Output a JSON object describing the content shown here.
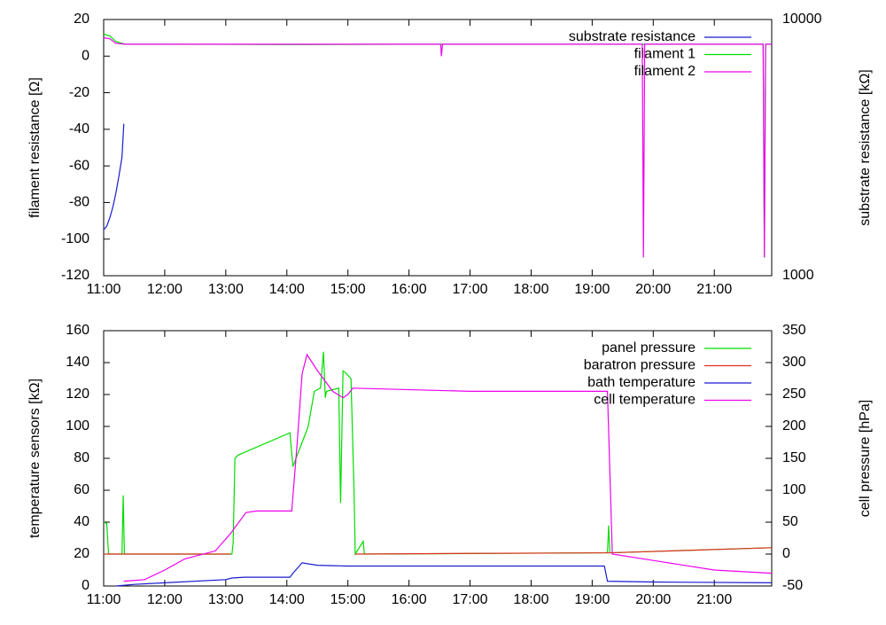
{
  "chart_data": [
    {
      "type": "line",
      "ylabel": "filament resistance [Ω]",
      "y2label": "substrate resistance [kΩ]",
      "xlim": [
        11,
        21.94
      ],
      "xticks": [
        {
          "value": 11,
          "label": "11:00"
        },
        {
          "value": 12,
          "label": "12:00"
        },
        {
          "value": 13,
          "label": "13:00"
        },
        {
          "value": 14,
          "label": "14:00"
        },
        {
          "value": 15,
          "label": "15:00"
        },
        {
          "value": 16,
          "label": "16:00"
        },
        {
          "value": 17,
          "label": "17:00"
        },
        {
          "value": 18,
          "label": "18:00"
        },
        {
          "value": 19,
          "label": "19:00"
        },
        {
          "value": 20,
          "label": "20:00"
        },
        {
          "value": 21,
          "label": "21:00"
        }
      ],
      "ylim": [
        -120,
        20
      ],
      "yticks": [
        -120,
        -100,
        -80,
        -60,
        -40,
        -20,
        0,
        20
      ],
      "y2lim": [
        1000,
        10000
      ],
      "y2ticks": [
        1000,
        10000
      ],
      "y2log": true,
      "grid": false,
      "legend": "top-right",
      "series": [
        {
          "name": "substrate resistance",
          "color": "#1a1ad0",
          "axis": "y2",
          "x": [
            11,
            11.05,
            11.1,
            11.15,
            11.2,
            11.25,
            11.3,
            11.33
          ],
          "values": [
            1510,
            1560,
            1680,
            1850,
            2100,
            2450,
            2900,
            3917
          ]
        },
        {
          "name": "filament 1",
          "color": "#00dd00",
          "x": [
            11,
            11.1,
            11.2,
            11.35,
            12,
            14,
            16,
            18,
            19.8,
            21.8,
            21.82,
            21.84,
            21.94
          ],
          "values": [
            12,
            11,
            8,
            6.5,
            6.5,
            6.3,
            6.5,
            6.5,
            6.5,
            6.5,
            -110,
            6.5,
            6.5
          ]
        },
        {
          "name": "filament 2",
          "color": "#ee00ee",
          "x": [
            11,
            11.1,
            11.2,
            11.35,
            13,
            16.52,
            16.53,
            16.55,
            19.82,
            19.84,
            19.86,
            21.8,
            21.82,
            21.84,
            21.94
          ],
          "values": [
            10,
            9.5,
            7,
            6.5,
            6.5,
            6.5,
            0,
            6.5,
            6.5,
            -110,
            6.5,
            6.5,
            -110,
            6.5,
            6.5
          ]
        }
      ]
    },
    {
      "type": "line",
      "ylabel": "temperature sensors [kΩ]",
      "y2label": "cell pressure [hPa]",
      "xlim": [
        11,
        21.94
      ],
      "xticks": [
        {
          "value": 11,
          "label": "11:00"
        },
        {
          "value": 12,
          "label": "12:00"
        },
        {
          "value": 13,
          "label": "13:00"
        },
        {
          "value": 14,
          "label": "14:00"
        },
        {
          "value": 15,
          "label": "15:00"
        },
        {
          "value": 16,
          "label": "16:00"
        },
        {
          "value": 17,
          "label": "17:00"
        },
        {
          "value": 18,
          "label": "18:00"
        },
        {
          "value": 19,
          "label": "19:00"
        },
        {
          "value": 20,
          "label": "20:00"
        },
        {
          "value": 21,
          "label": "21:00"
        }
      ],
      "ylim": [
        0,
        160
      ],
      "yticks": [
        0,
        20,
        40,
        60,
        80,
        100,
        120,
        140,
        160
      ],
      "y2lim": [
        -50,
        350
      ],
      "y2ticks": [
        -50,
        0,
        50,
        100,
        150,
        200,
        250,
        300,
        350
      ],
      "y2log": false,
      "grid": false,
      "legend": "top-right",
      "series": [
        {
          "name": "panel pressure",
          "color": "#00dd00",
          "axis": "y2",
          "x": [
            11,
            11.05,
            11.08,
            11.3,
            11.32,
            11.34,
            13.1,
            13.12,
            13.15,
            13.2,
            14.05,
            14.1,
            14.15,
            14.25,
            14.35,
            14.45,
            14.55,
            14.6,
            14.63,
            14.65,
            14.85,
            14.88,
            14.92,
            14.95,
            15.05,
            15.1,
            15.12,
            15.25,
            15.27,
            15.3,
            19.25,
            19.27,
            19.29,
            21.94
          ],
          "values": [
            50,
            48,
            0,
            0,
            92,
            0,
            0,
            17,
            150,
            155,
            190,
            137,
            150,
            175,
            200,
            255,
            260,
            317,
            245,
            255,
            260,
            80,
            287,
            285,
            275,
            100,
            0,
            20,
            0,
            0,
            2,
            45,
            2,
            10
          ]
        },
        {
          "name": "baratron pressure",
          "color": "#e03020",
          "axis": "y2",
          "x": [
            11,
            12,
            13.08,
            13.1,
            15.1,
            15.12,
            17,
            19.25,
            19.3,
            21.94
          ],
          "values": [
            0,
            0,
            0,
            null,
            null,
            0,
            1,
            2,
            2,
            10
          ]
        },
        {
          "name": "bath temperature",
          "color": "#1a1ad0",
          "x": [
            11.2,
            11.5,
            12,
            13,
            13.1,
            13.3,
            14.05,
            14.1,
            14.25,
            14.5,
            15,
            17,
            19.2,
            19.25,
            20,
            21.94
          ],
          "values": [
            0,
            1,
            2,
            4,
            5,
            5.5,
            5.5,
            8,
            14.5,
            13,
            12.5,
            12.5,
            12.5,
            3,
            2.5,
            2
          ]
        },
        {
          "name": "cell temperature",
          "color": "#ee00ee",
          "x": [
            11.33,
            11.67,
            12,
            12.33,
            12.83,
            13.08,
            13.33,
            13.5,
            14.08,
            14.17,
            14.25,
            14.33,
            14.5,
            14.75,
            14.92,
            15,
            15.08,
            17,
            19.17,
            19.25,
            19.33,
            20,
            21,
            21.94
          ],
          "values": [
            3,
            4,
            10,
            17,
            22,
            33,
            46,
            47,
            47,
            90,
            133,
            145,
            135,
            122,
            118,
            120,
            124,
            122,
            122,
            122,
            20,
            16,
            10,
            8
          ]
        }
      ]
    }
  ]
}
